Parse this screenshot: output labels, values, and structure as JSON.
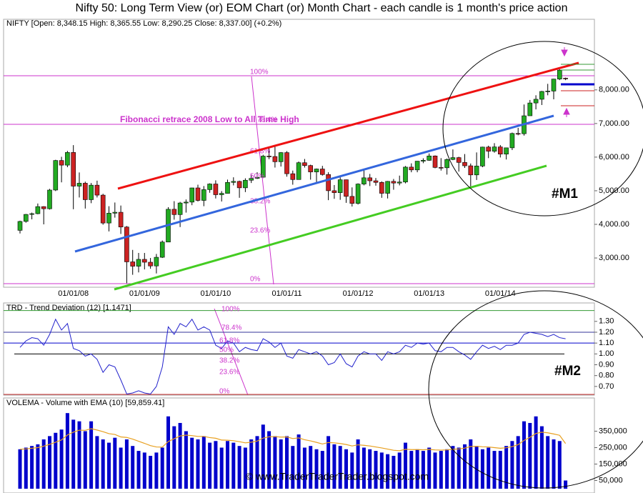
{
  "chart_data": [
    {
      "type": "candlestick",
      "title": "Nifty 50: Long Term View (or) EOM Chart (or) Month Chart - each candle is 1 month's price action",
      "legend_text": "NIFTY [Open: 8,348.15  High: 8,365.55  Low: 8,290.25  Close: 8,337.00] (+0.2%)",
      "categories": [
        null,
        null,
        null,
        null,
        null,
        null,
        null,
        null,
        null,
        "01/01/08",
        null,
        null,
        null,
        null,
        null,
        null,
        null,
        null,
        null,
        null,
        null,
        "01/01/09",
        null,
        null,
        null,
        null,
        null,
        null,
        null,
        null,
        null,
        null,
        null,
        "01/01/10",
        null,
        null,
        null,
        null,
        null,
        null,
        null,
        null,
        null,
        null,
        null,
        "01/01/11",
        null,
        null,
        null,
        null,
        null,
        null,
        null,
        null,
        null,
        null,
        null,
        "01/01/12",
        null,
        null,
        null,
        null,
        null,
        null,
        null,
        null,
        null,
        null,
        null,
        "01/01/13",
        null,
        null,
        null,
        null,
        null,
        null,
        null,
        null,
        null,
        null,
        null,
        "01/01/14",
        null,
        null,
        null,
        null,
        null,
        null,
        null,
        null,
        null,
        null,
        null
      ],
      "open": [
        3822,
        4087,
        4296,
        4318,
        4528,
        4464,
        5021,
        5900,
        5762,
        6139,
        5137,
        5224,
        4734,
        5166,
        4870,
        4040,
        4333,
        4360,
        3921,
        2885,
        2755,
        2959,
        2874,
        2763,
        3021,
        3474,
        4449,
        4291,
        4636,
        4662,
        5084,
        4712,
        5033,
        5201,
        4882,
        4922,
        5249,
        5278,
        5087,
        5313,
        5368,
        5402,
        6030,
        6018,
        5863,
        6135,
        5506,
        5333,
        5834,
        5750,
        5560,
        5647,
        5482,
        5001,
        4943,
        5327,
        4832,
        4624,
        5199,
        5385,
        5296,
        5248,
        4924,
        5279,
        5229,
        5259,
        5703,
        5620,
        5880,
        5905,
        6035,
        5693,
        5683,
        5930,
        5986,
        5842,
        5742,
        5471,
        5735,
        6299,
        6176,
        6304,
        6090,
        6277,
        6704,
        6696,
        7230,
        7611,
        7721,
        7954,
        7965,
        8322,
        8348.15
      ],
      "high": [
        4110,
        4310,
        4350,
        4620,
        4540,
        5055,
        5920,
        6010,
        6185,
        6357,
        5545,
        5270,
        5230,
        5300,
        4910,
        4540,
        4650,
        4560,
        3950,
        3240,
        3150,
        3150,
        3000,
        3120,
        3520,
        4510,
        4690,
        4670,
        4740,
        5090,
        5180,
        5140,
        5220,
        5310,
        4990,
        5330,
        5400,
        5300,
        5370,
        5480,
        5550,
        6070,
        6285,
        6340,
        6150,
        6180,
        5600,
        5870,
        5945,
        5775,
        5660,
        5740,
        5550,
        5170,
        5400,
        5330,
        5100,
        5220,
        5630,
        5500,
        5380,
        5280,
        5290,
        5350,
        5450,
        5735,
        5815,
        5885,
        5965,
        6110,
        6050,
        5970,
        5960,
        6230,
        6010,
        6090,
        5810,
        6140,
        6310,
        6340,
        6415,
        6360,
        6280,
        6730,
        6870,
        7565,
        7700,
        7840,
        7970,
        8180,
        8330,
        8617,
        8365.55
      ],
      "low": [
        3730,
        4050,
        4150,
        4300,
        4000,
        4440,
        4990,
        5250,
        5700,
        4450,
        4800,
        4470,
        4630,
        4800,
        3990,
        3790,
        4200,
        3715,
        2250,
        2500,
        2570,
        2660,
        2680,
        2540,
        3000,
        3470,
        4140,
        3920,
        4350,
        4570,
        4680,
        4540,
        4940,
        4770,
        4680,
        4920,
        5160,
        4790,
        4960,
        5230,
        5350,
        5400,
        5940,
        5690,
        5720,
        5420,
        5180,
        5350,
        5690,
        5330,
        5200,
        5450,
        4720,
        4760,
        4730,
        4640,
        4530,
        4590,
        5160,
        5140,
        5150,
        4790,
        4770,
        5030,
        5160,
        5220,
        5550,
        5550,
        5820,
        5890,
        5670,
        5600,
        5480,
        5910,
        5570,
        5680,
        5120,
        5320,
        5700,
        5970,
        6130,
        5990,
        5930,
        6210,
        6650,
        6640,
        7240,
        7420,
        7550,
        7840,
        7720,
        8290,
        8290.25
      ],
      "close": [
        4087,
        4296,
        4318,
        4528,
        4464,
        5021,
        5900,
        5762,
        6139,
        5137,
        5224,
        4734,
        5166,
        4870,
        4040,
        4333,
        4360,
        3921,
        2885,
        2755,
        2959,
        2874,
        2763,
        3021,
        3474,
        4449,
        4291,
        4636,
        4662,
        5084,
        4712,
        5033,
        5201,
        4882,
        4922,
        5249,
        5278,
        5087,
        5313,
        5368,
        5402,
        6030,
        6018,
        5863,
        6135,
        5506,
        5333,
        5834,
        5750,
        5560,
        5647,
        5482,
        5001,
        4943,
        5327,
        4832,
        4624,
        5199,
        5385,
        5296,
        5248,
        4924,
        5279,
        5229,
        5259,
        5703,
        5620,
        5880,
        5905,
        6035,
        5693,
        5683,
        5930,
        5986,
        5842,
        5742,
        5471,
        5735,
        6299,
        6176,
        6304,
        6090,
        6277,
        6704,
        6696,
        7230,
        7611,
        7721,
        7954,
        7965,
        8322,
        8588,
        8337
      ],
      "up_color": "#22aa22",
      "down_color": "#cc2222",
      "ylim": [
        2130,
        10100
      ],
      "yticks": [
        {
          "value": 3000,
          "label": "3,000.00"
        },
        {
          "value": 4000,
          "label": "4,000.00"
        },
        {
          "value": 5000,
          "label": "5,000.00"
        },
        {
          "value": 6000,
          "label": "6,000.00"
        },
        {
          "value": 7000,
          "label": "7,000.00"
        },
        {
          "value": 8000,
          "label": "8,000.00"
        }
      ],
      "fib_labels": [
        "100%",
        "78.4%",
        "61.8%",
        "50%",
        "38.2%",
        "23.6%",
        "0%"
      ],
      "annotations": [
        "Fibonacci retrace 2008 Low to All Time High",
        "#M1"
      ]
    },
    {
      "type": "line",
      "legend_text": "TRD - Trend Deviation (12) [1.1471]",
      "color": "#2222cc",
      "values": [
        1.06,
        1.12,
        1.15,
        1.14,
        1.08,
        1.18,
        1.32,
        1.22,
        1.28,
        1.05,
        1.03,
        0.98,
        1.0,
        0.95,
        0.83,
        0.9,
        0.88,
        0.76,
        0.63,
        0.64,
        0.66,
        0.64,
        0.63,
        0.7,
        0.88,
        1.25,
        1.18,
        1.28,
        1.25,
        1.32,
        1.22,
        1.25,
        1.22,
        1.08,
        1.05,
        1.12,
        1.1,
        1.02,
        1.06,
        1.04,
        1.03,
        1.14,
        1.11,
        1.06,
        1.1,
        0.98,
        0.96,
        1.04,
        1.02,
        1.0,
        1.02,
        0.98,
        0.9,
        0.92,
        1.0,
        0.91,
        0.88,
        0.98,
        1.02,
        1.0,
        1.0,
        0.94,
        1.02,
        1.0,
        1.02,
        1.08,
        1.06,
        1.1,
        1.09,
        1.1,
        1.03,
        1.02,
        1.06,
        1.06,
        1.02,
        0.99,
        0.95,
        1.02,
        1.08,
        1.05,
        1.07,
        1.04,
        1.08,
        1.08,
        1.1,
        1.18,
        1.2,
        1.19,
        1.18,
        1.16,
        1.18,
        1.15,
        1.14
      ],
      "ylim": [
        0.62,
        1.47
      ],
      "yticks": [
        {
          "value": 0.7,
          "label": "0.70"
        },
        {
          "value": 0.8,
          "label": "0.80"
        },
        {
          "value": 0.9,
          "label": "0.90"
        },
        {
          "value": 1.0,
          "label": "1.00"
        },
        {
          "value": 1.1,
          "label": "1.10"
        },
        {
          "value": 1.2,
          "label": "1.20"
        },
        {
          "value": 1.3,
          "label": "1.30"
        }
      ],
      "hlines": [
        {
          "value": 1.4,
          "color": "#339933"
        },
        {
          "value": 1.2,
          "color": "#333399"
        },
        {
          "value": 1.1,
          "color": "#0000cc"
        },
        {
          "value": 1.0,
          "color": "#000000"
        }
      ],
      "fib_labels": [
        "100%",
        "78.4%",
        "61.8%",
        "50%",
        "38.2%",
        "23.6%",
        "0%"
      ],
      "annotations": [
        "#M2"
      ]
    },
    {
      "type": "bar",
      "legend_text": "VOLEMA - Volume with EMA (10) [59,859.41]",
      "color": "#0000cc",
      "values": [
        240000,
        250000,
        260000,
        270000,
        300000,
        320000,
        340000,
        360000,
        460000,
        420000,
        410000,
        350000,
        410000,
        320000,
        300000,
        280000,
        310000,
        250000,
        300000,
        260000,
        230000,
        220000,
        200000,
        220000,
        250000,
        440000,
        380000,
        400000,
        350000,
        310000,
        300000,
        320000,
        280000,
        290000,
        250000,
        290000,
        280000,
        260000,
        250000,
        300000,
        320000,
        390000,
        350000,
        320000,
        300000,
        320000,
        260000,
        330000,
        250000,
        260000,
        240000,
        230000,
        320000,
        270000,
        260000,
        240000,
        220000,
        300000,
        250000,
        240000,
        230000,
        220000,
        210000,
        200000,
        220000,
        280000,
        230000,
        240000,
        230000,
        250000,
        220000,
        230000,
        240000,
        260000,
        250000,
        270000,
        300000,
        260000,
        240000,
        250000,
        230000,
        230000,
        260000,
        290000,
        320000,
        410000,
        400000,
        440000,
        380000,
        320000,
        300000,
        290000,
        50000
      ],
      "ema": {
        "color": "#e8a020",
        "values": [
          240000,
          242000,
          246000,
          250000,
          259000,
          270000,
          283000,
          297000,
          327000,
          344000,
          356000,
          355000,
          365000,
          357000,
          347000,
          335000,
          330000,
          315000,
          312000,
          302000,
          289000,
          276000,
          262000,
          254000,
          253000,
          287000,
          304000,
          321000,
          326000,
          323000,
          318000,
          318000,
          311000,
          307000,
          296000,
          295000,
          292000,
          286000,
          279000,
          283000,
          290000,
          308000,
          316000,
          317000,
          314000,
          315000,
          305000,
          309000,
          298000,
          291000,
          282000,
          272000,
          281000,
          279000,
          275000,
          269000,
          260000,
          267000,
          264000,
          260000,
          254000,
          248000,
          241000,
          234000,
          231000,
          240000,
          238000,
          238000,
          237000,
          239000,
          236000,
          235000,
          236000,
          240000,
          242000,
          247000,
          257000,
          258000,
          255000,
          254000,
          250000,
          246000,
          249000,
          256000,
          268000,
          294000,
          313000,
          336000,
          344000,
          340000,
          333000,
          325000,
          275000
        ]
      },
      "ylim": [
        0,
        552000
      ],
      "yticks": [
        {
          "value": 50000,
          "label": "50,000"
        },
        {
          "value": 150000,
          "label": "150,000"
        },
        {
          "value": 250000,
          "label": "250,000"
        },
        {
          "value": 350000,
          "label": "350,000"
        }
      ],
      "footer": "© www.TraderTraderTrader.blogspot.com"
    }
  ]
}
